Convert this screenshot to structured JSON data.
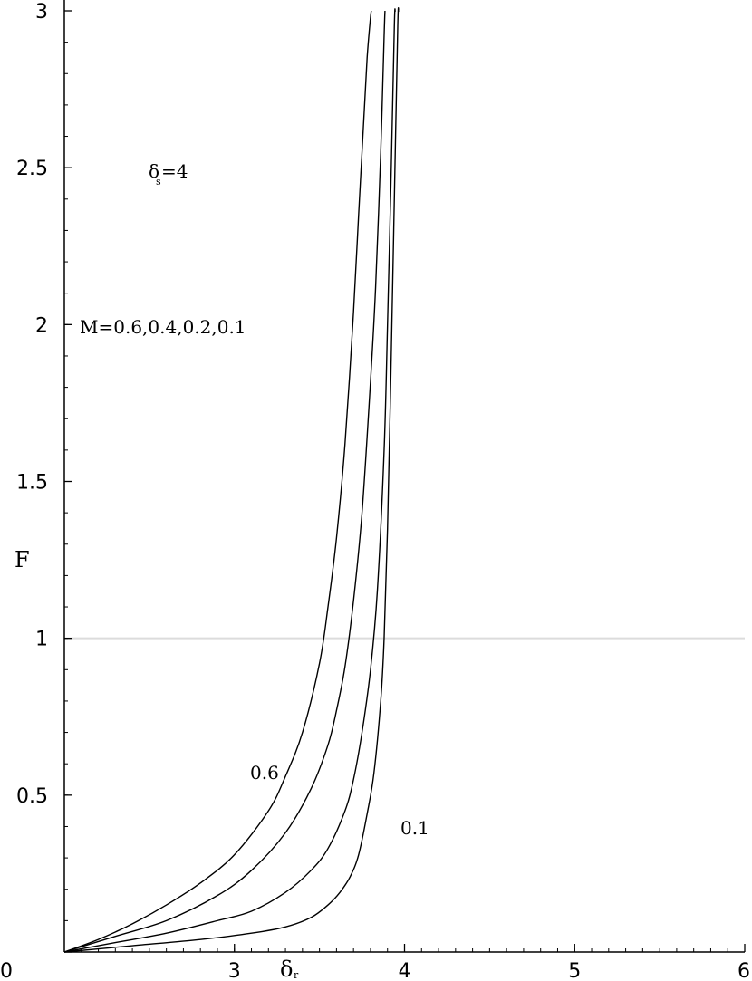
{
  "chart_data": {
    "type": "line",
    "xlabel": "δ",
    "xlabel_sub": "r",
    "ylabel": "F",
    "xlim": [
      2,
      6
    ],
    "ylim": [
      0,
      3
    ],
    "x_ticks": [
      3,
      4,
      5,
      6
    ],
    "x_tick_labels": [
      "3",
      "4",
      "5",
      "6"
    ],
    "y_ticks": [
      0,
      0.5,
      1,
      1.5,
      2,
      2.5,
      3
    ],
    "y_tick_labels": [
      "0",
      "0.5",
      "1",
      "1.5",
      "2",
      "2.5",
      "3"
    ],
    "origin_label": "0",
    "reference_line": {
      "y": 1
    },
    "grid": false,
    "annotations": {
      "param_main": "δ",
      "param_sub": "s",
      "param_value": "=4",
      "mass_list": "M=0.6,0.4,0.2,0.1",
      "left_curve_label": "0.6",
      "right_curve_label": "0.1"
    },
    "series": [
      {
        "name": "0.6",
        "x": [
          2.0,
          2.2,
          2.4,
          2.6,
          2.8,
          3.0,
          3.2,
          3.3,
          3.4,
          3.5,
          3.55,
          3.6,
          3.65,
          3.7,
          3.73,
          3.76,
          3.78,
          3.8,
          3.805
        ],
        "y": [
          0.0,
          0.04,
          0.09,
          0.15,
          0.22,
          0.31,
          0.45,
          0.56,
          0.7,
          0.92,
          1.1,
          1.32,
          1.62,
          2.04,
          2.35,
          2.65,
          2.85,
          2.98,
          3.0
        ]
      },
      {
        "name": "0.4",
        "x": [
          2.0,
          2.3,
          2.6,
          2.9,
          3.1,
          3.3,
          3.45,
          3.55,
          3.6,
          3.65,
          3.7,
          3.75,
          3.8,
          3.83,
          3.86,
          3.88,
          3.885
        ],
        "y": [
          0.0,
          0.05,
          0.1,
          0.18,
          0.26,
          0.38,
          0.52,
          0.66,
          0.77,
          0.91,
          1.12,
          1.4,
          1.82,
          2.12,
          2.55,
          2.92,
          3.0
        ]
      },
      {
        "name": "0.2",
        "x": [
          2.0,
          2.3,
          2.6,
          2.9,
          3.1,
          3.3,
          3.45,
          3.55,
          3.65,
          3.7,
          3.75,
          3.8,
          3.84,
          3.88,
          3.9,
          3.92,
          3.94,
          3.945
        ],
        "y": [
          0.0,
          0.03,
          0.06,
          0.1,
          0.13,
          0.19,
          0.26,
          0.33,
          0.45,
          0.55,
          0.7,
          0.9,
          1.15,
          1.6,
          2.0,
          2.45,
          2.95,
          3.0
        ]
      },
      {
        "name": "0.1",
        "x": [
          2.0,
          2.4,
          2.8,
          3.1,
          3.3,
          3.45,
          3.55,
          3.62,
          3.68,
          3.73,
          3.78,
          3.82,
          3.86,
          3.88,
          3.9,
          3.92,
          3.94,
          3.96,
          3.965
        ],
        "y": [
          0.0,
          0.02,
          0.04,
          0.06,
          0.08,
          0.11,
          0.15,
          0.19,
          0.24,
          0.31,
          0.44,
          0.57,
          0.8,
          1.0,
          1.35,
          1.85,
          2.4,
          2.95,
          3.0
        ]
      }
    ]
  }
}
